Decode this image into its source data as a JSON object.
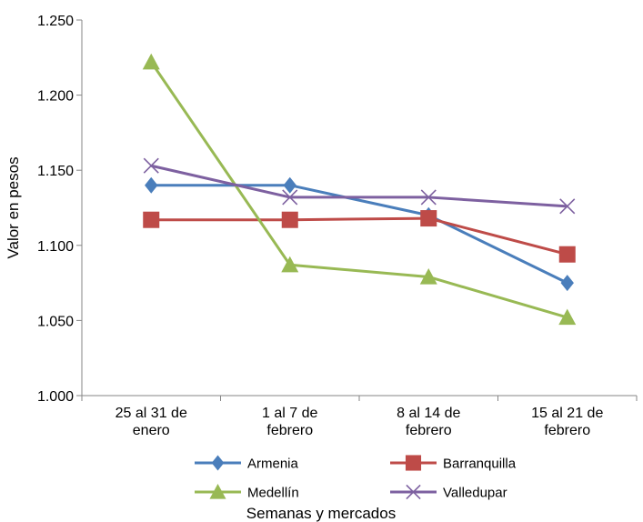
{
  "chart_data": {
    "type": "line",
    "title": "",
    "xlabel": "Semanas y mercados",
    "ylabel": "Valor en pesos",
    "categories": [
      [
        "25 al 31 de",
        "enero"
      ],
      [
        "1 al 7 de",
        "febrero"
      ],
      [
        "8 al 14 de",
        "febrero"
      ],
      [
        "15 al 21 de",
        "febrero"
      ]
    ],
    "ylim": [
      1000,
      1250
    ],
    "yticks": [
      1000,
      1050,
      1100,
      1150,
      1200,
      1250
    ],
    "ytick_labels": [
      "1.000",
      "1.050",
      "1.100",
      "1.150",
      "1.200",
      "1.250"
    ],
    "grid": false,
    "legend_position": "bottom",
    "series": [
      {
        "name": "Armenia",
        "values": [
          1140,
          1140,
          1120,
          1075
        ],
        "color": "#4a7ebb",
        "marker": "diamond"
      },
      {
        "name": "Barranquilla",
        "values": [
          1117,
          1117,
          1118,
          1094
        ],
        "color": "#be4b48",
        "marker": "square"
      },
      {
        "name": "Medellín",
        "values": [
          1222,
          1087,
          1079,
          1052
        ],
        "color": "#98b954",
        "marker": "triangle"
      },
      {
        "name": "Valledupar",
        "values": [
          1153,
          1132,
          1132,
          1126
        ],
        "color": "#7d60a0",
        "marker": "x"
      }
    ]
  }
}
